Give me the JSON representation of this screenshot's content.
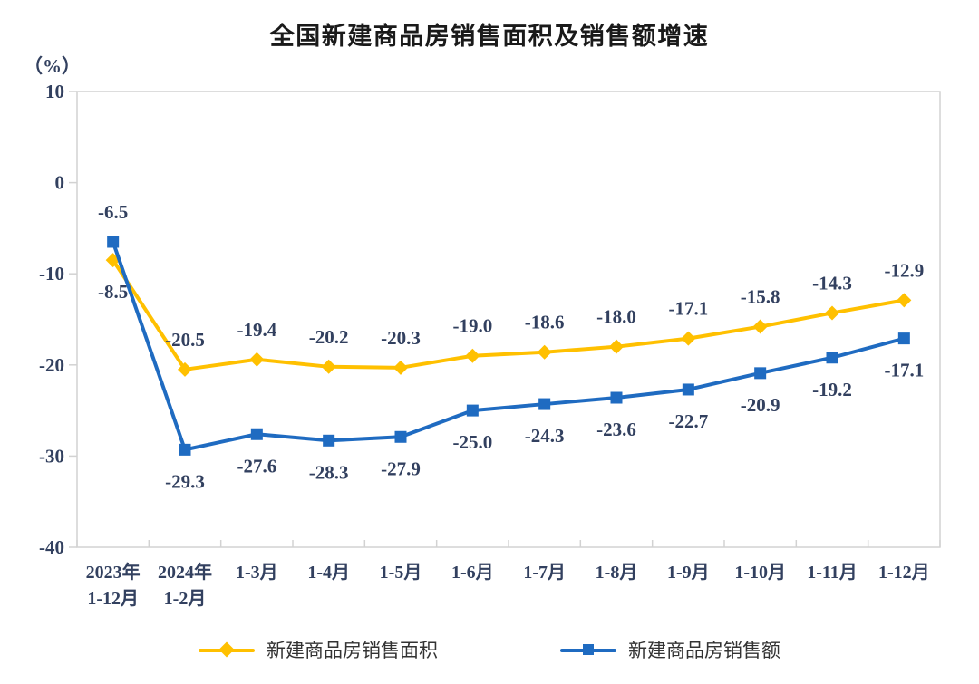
{
  "title": "全国新建商品房销售面积及销售额增速",
  "y_axis_unit": "（%）",
  "colors": {
    "axis": "#D2D2D2",
    "text": "#32405F",
    "title": "#1A1A1A",
    "legend_text": "#333333"
  },
  "chart_data": {
    "type": "line",
    "title": "全国新建商品房销售面积及销售额增速",
    "ylabel": "（%）",
    "ylim": [
      -40,
      10
    ],
    "yticks": [
      10,
      0,
      -10,
      -20,
      -30,
      -40
    ],
    "grid": false,
    "legend_position": "bottom",
    "categories": [
      [
        "2023年",
        "1-12月"
      ],
      [
        "2024年",
        "1-2月"
      ],
      [
        "1-3月"
      ],
      [
        "1-4月"
      ],
      [
        "1-5月"
      ],
      [
        "1-6月"
      ],
      [
        "1-7月"
      ],
      [
        "1-8月"
      ],
      [
        "1-9月"
      ],
      [
        "1-10月"
      ],
      [
        "1-11月"
      ],
      [
        "1-12月"
      ]
    ],
    "series": [
      {
        "name": "新建商品房销售面积",
        "color": "#FFC000",
        "marker": "diamond",
        "label_position": "above",
        "first_label_position": "below",
        "values": [
          -8.5,
          -20.5,
          -19.4,
          -20.2,
          -20.3,
          -19.0,
          -18.6,
          -18.0,
          -17.1,
          -15.8,
          -14.3,
          -12.9
        ]
      },
      {
        "name": "新建商品房销售额",
        "color": "#1F6BC1",
        "marker": "square",
        "label_position": "below",
        "first_label_position": "above",
        "values": [
          -6.5,
          -29.3,
          -27.6,
          -28.3,
          -27.9,
          -25.0,
          -24.3,
          -23.6,
          -22.7,
          -20.9,
          -19.2,
          -17.1
        ]
      }
    ]
  }
}
